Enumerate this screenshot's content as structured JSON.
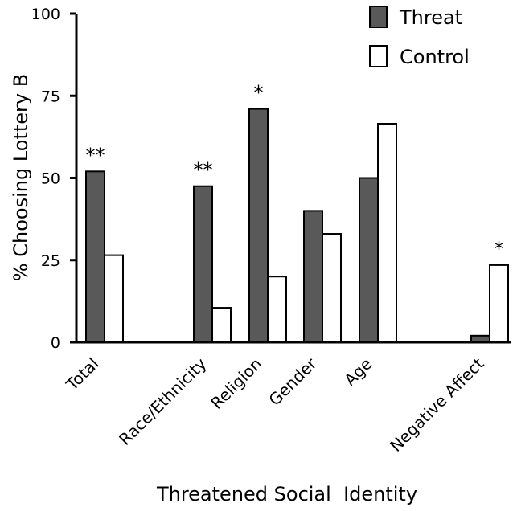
{
  "chart_data": {
    "type": "bar",
    "xlabel": "Threatened Social  Identity",
    "ylabel": "% Choosing Lottery B",
    "ylim": [
      0,
      100
    ],
    "yticks": [
      "0",
      "25",
      "50",
      "75",
      "100"
    ],
    "categories": [
      "Total",
      "Race/Ethnicity",
      "Religion",
      "Gender",
      "Age",
      "Negative Affect"
    ],
    "series": [
      {
        "name": "Threat",
        "color": "#595959",
        "values": [
          52,
          47.5,
          71,
          40,
          50,
          2
        ]
      },
      {
        "name": "Control",
        "color": "#ffffff",
        "values": [
          26.5,
          10.5,
          20,
          33,
          66.5,
          23.5
        ]
      }
    ],
    "significance": [
      "**",
      "**",
      "*",
      "",
      "",
      "*"
    ],
    "legend": "top-right"
  }
}
